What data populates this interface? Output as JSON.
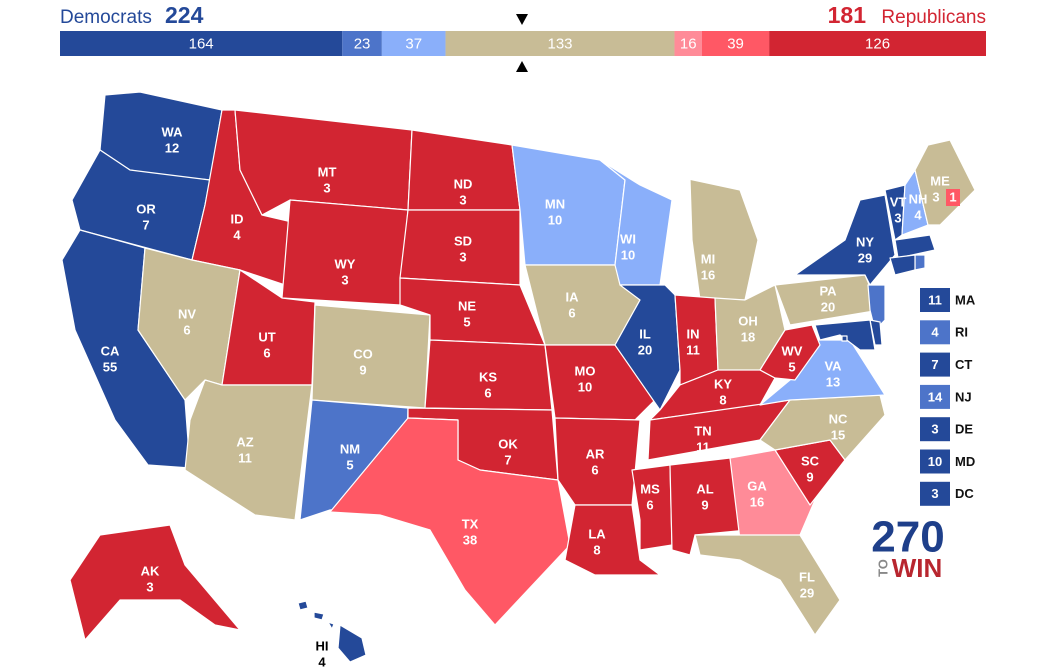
{
  "header": {
    "dem_label": "Democrats",
    "dem_total": 224,
    "rep_total": 181,
    "rep_label": "Republicans",
    "dem_color": "#244999",
    "rep_color": "#d22532"
  },
  "bar": [
    {
      "value": 164,
      "color": "#244999"
    },
    {
      "value": 23,
      "color": "#4d74c9"
    },
    {
      "value": 37,
      "color": "#8aaffa"
    },
    {
      "value": 133,
      "color": "#c8bc96"
    },
    {
      "value": 16,
      "color": "#ff8b98"
    },
    {
      "value": 39,
      "color": "#ff5865"
    },
    {
      "value": 126,
      "color": "#d22532"
    }
  ],
  "states": [
    {
      "abbr": "WA",
      "ev": 12,
      "color": "#244999"
    },
    {
      "abbr": "OR",
      "ev": 7,
      "color": "#244999"
    },
    {
      "abbr": "CA",
      "ev": 55,
      "color": "#244999"
    },
    {
      "abbr": "ID",
      "ev": 4,
      "color": "#d22532"
    },
    {
      "abbr": "NV",
      "ev": 6,
      "color": "#c8bc96"
    },
    {
      "abbr": "MT",
      "ev": 3,
      "color": "#d22532"
    },
    {
      "abbr": "WY",
      "ev": 3,
      "color": "#d22532"
    },
    {
      "abbr": "UT",
      "ev": 6,
      "color": "#d22532"
    },
    {
      "abbr": "AZ",
      "ev": 11,
      "color": "#c8bc96"
    },
    {
      "abbr": "CO",
      "ev": 9,
      "color": "#c8bc96"
    },
    {
      "abbr": "NM",
      "ev": 5,
      "color": "#4d74c9"
    },
    {
      "abbr": "ND",
      "ev": 3,
      "color": "#d22532"
    },
    {
      "abbr": "SD",
      "ev": 3,
      "color": "#d22532"
    },
    {
      "abbr": "NE",
      "ev": 5,
      "color": "#d22532"
    },
    {
      "abbr": "KS",
      "ev": 6,
      "color": "#d22532"
    },
    {
      "abbr": "OK",
      "ev": 7,
      "color": "#d22532"
    },
    {
      "abbr": "TX",
      "ev": 38,
      "color": "#ff5865"
    },
    {
      "abbr": "MN",
      "ev": 10,
      "color": "#8aaffa"
    },
    {
      "abbr": "IA",
      "ev": 6,
      "color": "#c8bc96"
    },
    {
      "abbr": "MO",
      "ev": 10,
      "color": "#d22532"
    },
    {
      "abbr": "AR",
      "ev": 6,
      "color": "#d22532"
    },
    {
      "abbr": "LA",
      "ev": 8,
      "color": "#d22532"
    },
    {
      "abbr": "WI",
      "ev": 10,
      "color": "#8aaffa"
    },
    {
      "abbr": "IL",
      "ev": 20,
      "color": "#244999"
    },
    {
      "abbr": "MI",
      "ev": 16,
      "color": "#c8bc96"
    },
    {
      "abbr": "IN",
      "ev": 11,
      "color": "#d22532"
    },
    {
      "abbr": "OH",
      "ev": 18,
      "color": "#c8bc96"
    },
    {
      "abbr": "KY",
      "ev": 8,
      "color": "#d22532"
    },
    {
      "abbr": "TN",
      "ev": 11,
      "color": "#d22532"
    },
    {
      "abbr": "MS",
      "ev": 6,
      "color": "#d22532"
    },
    {
      "abbr": "AL",
      "ev": 9,
      "color": "#d22532"
    },
    {
      "abbr": "GA",
      "ev": 16,
      "color": "#ff8b98"
    },
    {
      "abbr": "FL",
      "ev": 29,
      "color": "#c8bc96"
    },
    {
      "abbr": "SC",
      "ev": 9,
      "color": "#d22532"
    },
    {
      "abbr": "NC",
      "ev": 15,
      "color": "#c8bc96"
    },
    {
      "abbr": "VA",
      "ev": 13,
      "color": "#8aaffa"
    },
    {
      "abbr": "WV",
      "ev": 5,
      "color": "#d22532"
    },
    {
      "abbr": "PA",
      "ev": 20,
      "color": "#c8bc96"
    },
    {
      "abbr": "NY",
      "ev": 29,
      "color": "#244999"
    },
    {
      "abbr": "VT",
      "ev": 3,
      "color": "#244999"
    },
    {
      "abbr": "NH",
      "ev": 4,
      "color": "#8aaffa"
    },
    {
      "abbr": "ME",
      "ev": 3,
      "color": "#c8bc96",
      "district": {
        "ev": 1,
        "color": "#ff5865"
      }
    },
    {
      "abbr": "AK",
      "ev": 3,
      "color": "#d22532"
    },
    {
      "abbr": "HI",
      "ev": 4,
      "color": "#244999"
    }
  ],
  "small_states": [
    {
      "abbr": "MA",
      "ev": 11,
      "color": "#244999"
    },
    {
      "abbr": "RI",
      "ev": 4,
      "color": "#4d74c9"
    },
    {
      "abbr": "CT",
      "ev": 7,
      "color": "#244999"
    },
    {
      "abbr": "NJ",
      "ev": 14,
      "color": "#4d74c9"
    },
    {
      "abbr": "DE",
      "ev": 3,
      "color": "#244999"
    },
    {
      "abbr": "MD",
      "ev": 10,
      "color": "#244999"
    },
    {
      "abbr": "DC",
      "ev": 3,
      "color": "#244999"
    }
  ],
  "logo": {
    "number": "270",
    "to": "TO",
    "win": "WIN"
  }
}
